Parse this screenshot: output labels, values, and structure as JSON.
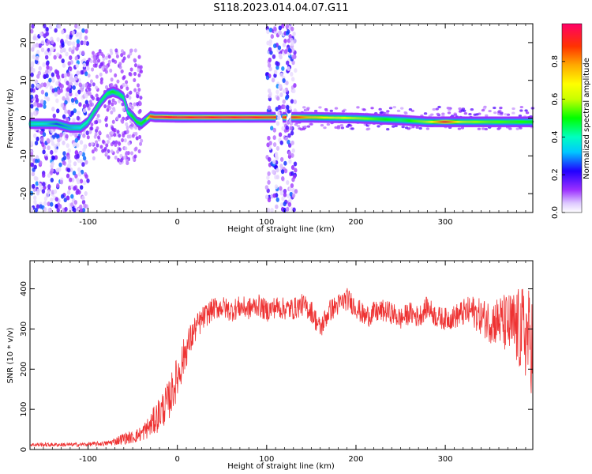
{
  "title": "S118.2023.014.04.07.G11",
  "chart_data": [
    {
      "type": "heatmap",
      "xlabel": "Height of straight line (km)",
      "ylabel": "Frequency (Hz)",
      "xlim": [
        -165,
        398
      ],
      "ylim": [
        -25,
        25
      ],
      "xticks": [
        -100,
        0,
        100,
        200,
        300
      ],
      "yticks": [
        -20,
        -10,
        0,
        10,
        20
      ],
      "colorbar": {
        "label": "Normalized spectral amplitude",
        "range": [
          0,
          1
        ],
        "ticks": [
          0.0,
          0.2,
          0.4,
          0.6,
          0.8
        ]
      },
      "ridge": {
        "x": [
          -165,
          -150,
          -135,
          -120,
          -108,
          -100,
          -92,
          -85,
          -78,
          -72,
          -66,
          -60,
          -55,
          -50,
          -45,
          -40,
          -35,
          -30,
          -25,
          -20,
          0,
          50,
          85,
          100,
          110,
          120,
          130,
          150,
          200,
          250,
          280,
          300,
          320,
          350,
          398
        ],
        "freq": [
          -1.5,
          -1.5,
          -1.5,
          -2.5,
          -2.5,
          -1.0,
          2.0,
          4.5,
          6.5,
          7.0,
          6.5,
          5.5,
          1.5,
          0.5,
          -1.0,
          -1.5,
          -0.5,
          0.5,
          0.3,
          0.3,
          0.2,
          0.2,
          0.2,
          0.2,
          0.2,
          0.2,
          0.2,
          0.2,
          0.0,
          -0.5,
          -1.0,
          -1.0,
          -1.0,
          -1.0,
          -1.0
        ],
        "amplitude": [
          0.35,
          0.35,
          0.25,
          0.3,
          0.35,
          0.4,
          0.45,
          0.45,
          0.45,
          0.5,
          0.45,
          0.45,
          0.4,
          0.5,
          0.5,
          0.5,
          0.5,
          0.85,
          0.9,
          0.95,
          0.95,
          0.95,
          0.95,
          0.9,
          0.9,
          0.9,
          0.9,
          0.75,
          0.6,
          0.45,
          0.6,
          0.9,
          0.6,
          0.55,
          0.5
        ]
      },
      "noise_bands": [
        [
          -165,
          -100
        ],
        [
          100,
          133
        ]
      ]
    },
    {
      "type": "line",
      "xlabel": "Height of straight line (km)",
      "ylabel": "SNR (10 * v/v)",
      "xlim": [
        -165,
        398
      ],
      "ylim": [
        0,
        470
      ],
      "xticks": [
        -100,
        0,
        100,
        200,
        300
      ],
      "yticks": [
        0,
        100,
        200,
        300,
        400
      ],
      "series": [
        {
          "color": "#ee3333",
          "x": [
            -165,
            -140,
            -110,
            -80,
            -70,
            -60,
            -50,
            -40,
            -30,
            -20,
            -10,
            0,
            10,
            20,
            30,
            40,
            50,
            60,
            70,
            80,
            90,
            100,
            110,
            120,
            130,
            140,
            150,
            160,
            170,
            180,
            190,
            200,
            210,
            220,
            230,
            240,
            250,
            260,
            270,
            280,
            290,
            300,
            310,
            320,
            330,
            340,
            350,
            360,
            370,
            380,
            390,
            398
          ],
          "y": [
            12,
            12,
            12,
            15,
            20,
            28,
            30,
            40,
            60,
            90,
            120,
            180,
            250,
            300,
            330,
            350,
            355,
            345,
            355,
            350,
            360,
            345,
            355,
            350,
            350,
            360,
            345,
            300,
            345,
            360,
            375,
            355,
            330,
            340,
            345,
            340,
            325,
            340,
            330,
            355,
            330,
            325,
            330,
            340,
            345,
            330,
            320,
            320,
            310,
            300,
            290,
            260
          ],
          "noise": [
            5,
            5,
            5,
            6,
            10,
            15,
            15,
            20,
            30,
            45,
            50,
            55,
            45,
            35,
            30,
            28,
            28,
            28,
            28,
            28,
            28,
            28,
            28,
            28,
            28,
            28,
            28,
            28,
            28,
            28,
            28,
            28,
            28,
            28,
            28,
            28,
            28,
            28,
            28,
            28,
            28,
            28,
            30,
            35,
            40,
            45,
            55,
            65,
            80,
            100,
            120,
            130
          ]
        }
      ]
    }
  ]
}
